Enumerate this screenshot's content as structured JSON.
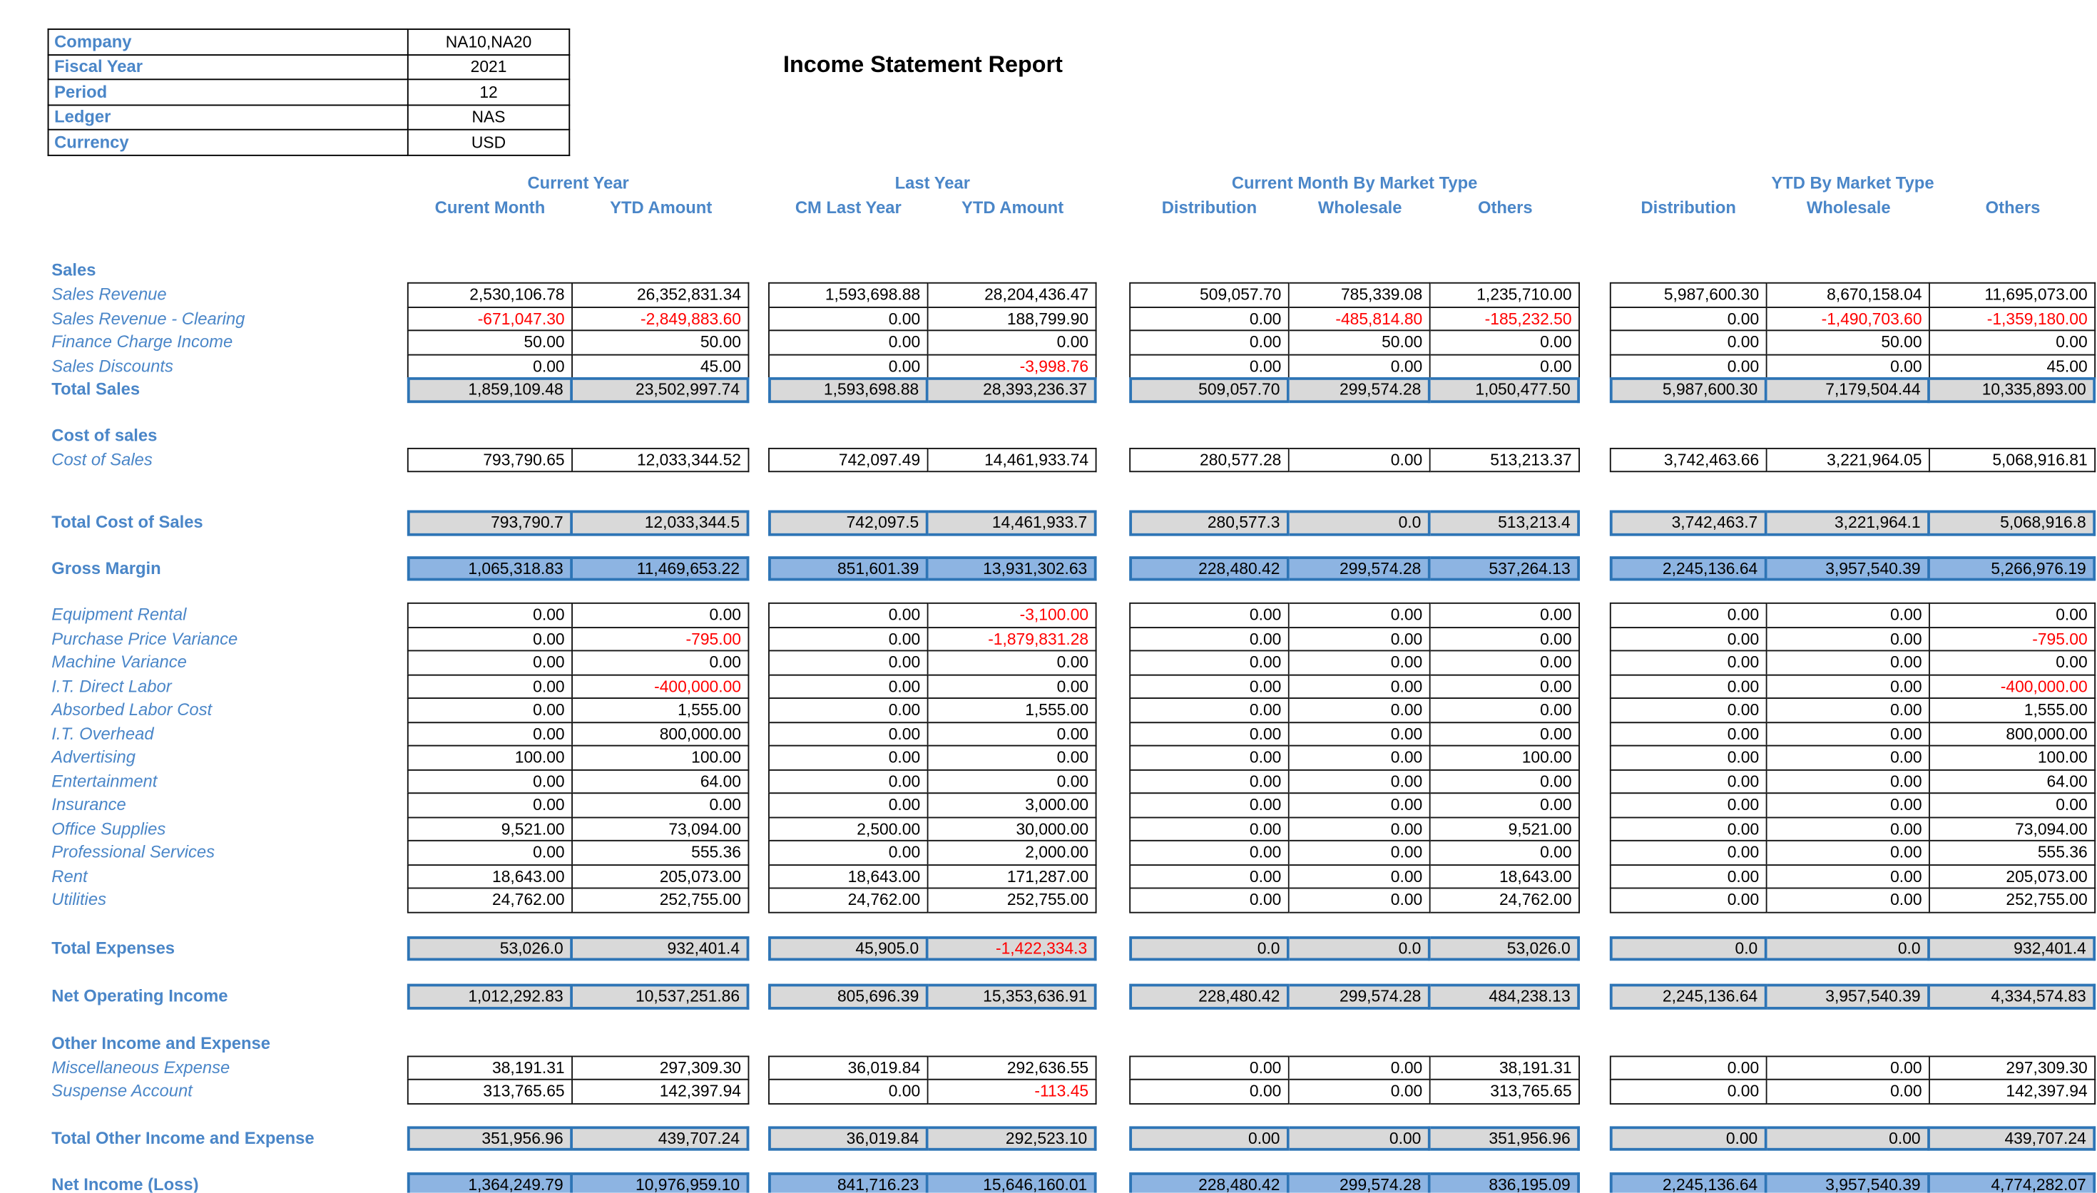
{
  "title": "Income Statement Report",
  "info": {
    "rows": [
      {
        "label": "Company",
        "value": "NA10,NA20"
      },
      {
        "label": "Fiscal Year",
        "value": "2021"
      },
      {
        "label": "Period",
        "value": "12"
      },
      {
        "label": "Ledger",
        "value": "NAS"
      },
      {
        "label": "Currency",
        "value": "USD"
      }
    ]
  },
  "colors": {
    "label_blue": "#4A86C8",
    "total_border_blue": "#2E75B6",
    "highlight_fill_blue": "#8DB4E2",
    "total_fill_gray": "#D9D9D9",
    "negative_red": "#FF0000"
  },
  "report": {
    "column_groups": [
      {
        "label": "Current Year",
        "cols": [
          "Curent Month",
          "YTD Amount"
        ]
      },
      {
        "label": "Last Year",
        "cols": [
          "CM Last Year",
          "YTD Amount"
        ]
      },
      {
        "label": "Current Month By Market Type",
        "cols": [
          "Distribution",
          "Wholesale",
          "Others"
        ]
      },
      {
        "label": "YTD By Market Type",
        "cols": [
          "Distribution",
          "Wholesale",
          "Others"
        ]
      }
    ],
    "rows": [
      {
        "type": "section",
        "label": "Sales"
      },
      {
        "type": "detail",
        "label": "Sales Revenue",
        "values": [
          "2,530,106.78",
          "26,352,831.34",
          "1,593,698.88",
          "28,204,436.47",
          "509,057.70",
          "785,339.08",
          "1,235,710.00",
          "5,987,600.30",
          "8,670,158.04",
          "11,695,073.00"
        ]
      },
      {
        "type": "detail",
        "label": "Sales Revenue - Clearing",
        "values": [
          "-671,047.30",
          "-2,849,883.60",
          "0.00",
          "188,799.90",
          "0.00",
          "-485,814.80",
          "-185,232.50",
          "0.00",
          "-1,490,703.60",
          "-1,359,180.00"
        ]
      },
      {
        "type": "detail",
        "label": "Finance Charge Income",
        "values": [
          "50.00",
          "50.00",
          "0.00",
          "0.00",
          "0.00",
          "50.00",
          "0.00",
          "0.00",
          "50.00",
          "0.00"
        ]
      },
      {
        "type": "detail",
        "label": "Sales Discounts",
        "values": [
          "0.00",
          "45.00",
          "0.00",
          "-3,998.76",
          "0.00",
          "0.00",
          "0.00",
          "0.00",
          "0.00",
          "45.00"
        ]
      },
      {
        "type": "total",
        "label": "Total Sales",
        "values": [
          "1,859,109.48",
          "23,502,997.74",
          "1,593,698.88",
          "28,393,236.37",
          "509,057.70",
          "299,574.28",
          "1,050,477.50",
          "5,987,600.30",
          "7,179,504.44",
          "10,335,893.00"
        ]
      },
      {
        "type": "section",
        "label": "Cost of sales"
      },
      {
        "type": "detail",
        "label": "Cost of Sales",
        "values": [
          "793,790.65",
          "12,033,344.52",
          "742,097.49",
          "14,461,933.74",
          "280,577.28",
          "0.00",
          "513,213.37",
          "3,742,463.66",
          "3,221,964.05",
          "5,068,916.81"
        ]
      },
      {
        "type": "total",
        "label": "Total Cost of Sales",
        "values": [
          "793,790.7",
          "12,033,344.5",
          "742,097.5",
          "14,461,933.7",
          "280,577.3",
          "0.0",
          "513,213.4",
          "3,742,463.7",
          "3,221,964.1",
          "5,068,916.8"
        ]
      },
      {
        "type": "blue",
        "label": "Gross Margin",
        "values": [
          "1,065,318.83",
          "11,469,653.22",
          "851,601.39",
          "13,931,302.63",
          "228,480.42",
          "299,574.28",
          "537,264.13",
          "2,245,136.64",
          "3,957,540.39",
          "5,266,976.19"
        ]
      },
      {
        "type": "detail",
        "label": "Equipment Rental",
        "values": [
          "0.00",
          "0.00",
          "0.00",
          "-3,100.00",
          "0.00",
          "0.00",
          "0.00",
          "0.00",
          "0.00",
          "0.00"
        ]
      },
      {
        "type": "detail",
        "label": "Purchase Price Variance",
        "values": [
          "0.00",
          "-795.00",
          "0.00",
          "-1,879,831.28",
          "0.00",
          "0.00",
          "0.00",
          "0.00",
          "0.00",
          "-795.00"
        ]
      },
      {
        "type": "detail",
        "label": "Machine Variance",
        "values": [
          "0.00",
          "0.00",
          "0.00",
          "0.00",
          "0.00",
          "0.00",
          "0.00",
          "0.00",
          "0.00",
          "0.00"
        ]
      },
      {
        "type": "detail",
        "label": "I.T. Direct Labor",
        "values": [
          "0.00",
          "-400,000.00",
          "0.00",
          "0.00",
          "0.00",
          "0.00",
          "0.00",
          "0.00",
          "0.00",
          "-400,000.00"
        ]
      },
      {
        "type": "detail",
        "label": "Absorbed Labor Cost",
        "values": [
          "0.00",
          "1,555.00",
          "0.00",
          "1,555.00",
          "0.00",
          "0.00",
          "0.00",
          "0.00",
          "0.00",
          "1,555.00"
        ]
      },
      {
        "type": "detail",
        "label": "I.T. Overhead",
        "values": [
          "0.00",
          "800,000.00",
          "0.00",
          "0.00",
          "0.00",
          "0.00",
          "0.00",
          "0.00",
          "0.00",
          "800,000.00"
        ]
      },
      {
        "type": "detail",
        "label": "Advertising",
        "values": [
          "100.00",
          "100.00",
          "0.00",
          "0.00",
          "0.00",
          "0.00",
          "100.00",
          "0.00",
          "0.00",
          "100.00"
        ]
      },
      {
        "type": "detail",
        "label": "Entertainment",
        "values": [
          "0.00",
          "64.00",
          "0.00",
          "0.00",
          "0.00",
          "0.00",
          "0.00",
          "0.00",
          "0.00",
          "64.00"
        ]
      },
      {
        "type": "detail",
        "label": "Insurance",
        "values": [
          "0.00",
          "0.00",
          "0.00",
          "3,000.00",
          "0.00",
          "0.00",
          "0.00",
          "0.00",
          "0.00",
          "0.00"
        ]
      },
      {
        "type": "detail",
        "label": "Office Supplies",
        "values": [
          "9,521.00",
          "73,094.00",
          "2,500.00",
          "30,000.00",
          "0.00",
          "0.00",
          "9,521.00",
          "0.00",
          "0.00",
          "73,094.00"
        ]
      },
      {
        "type": "detail",
        "label": "Professional Services",
        "values": [
          "0.00",
          "555.36",
          "0.00",
          "2,000.00",
          "0.00",
          "0.00",
          "0.00",
          "0.00",
          "0.00",
          "555.36"
        ]
      },
      {
        "type": "detail",
        "label": "Rent",
        "values": [
          "18,643.00",
          "205,073.00",
          "18,643.00",
          "171,287.00",
          "0.00",
          "0.00",
          "18,643.00",
          "0.00",
          "0.00",
          "205,073.00"
        ]
      },
      {
        "type": "detail",
        "label": "Utilities",
        "values": [
          "24,762.00",
          "252,755.00",
          "24,762.00",
          "252,755.00",
          "0.00",
          "0.00",
          "24,762.00",
          "0.00",
          "0.00",
          "252,755.00"
        ]
      },
      {
        "type": "total",
        "label": "Total Expenses",
        "values": [
          "53,026.0",
          "932,401.4",
          "45,905.0",
          "-1,422,334.3",
          "0.0",
          "0.0",
          "53,026.0",
          "0.0",
          "0.0",
          "932,401.4"
        ]
      },
      {
        "type": "total",
        "label": "Net Operating Income",
        "values": [
          "1,012,292.83",
          "10,537,251.86",
          "805,696.39",
          "15,353,636.91",
          "228,480.42",
          "299,574.28",
          "484,238.13",
          "2,245,136.64",
          "3,957,540.39",
          "4,334,574.83"
        ]
      },
      {
        "type": "section",
        "label": "Other Income and Expense"
      },
      {
        "type": "detail",
        "label": "Miscellaneous Expense",
        "values": [
          "38,191.31",
          "297,309.30",
          "36,019.84",
          "292,636.55",
          "0.00",
          "0.00",
          "38,191.31",
          "0.00",
          "0.00",
          "297,309.30"
        ]
      },
      {
        "type": "detail",
        "label": "Suspense Account",
        "values": [
          "313,765.65",
          "142,397.94",
          "0.00",
          "-113.45",
          "0.00",
          "0.00",
          "313,765.65",
          "0.00",
          "0.00",
          "142,397.94"
        ]
      },
      {
        "type": "total",
        "label": "Total Other Income and Expense",
        "values": [
          "351,956.96",
          "439,707.24",
          "36,019.84",
          "292,523.10",
          "0.00",
          "0.00",
          "351,956.96",
          "0.00",
          "0.00",
          "439,707.24"
        ]
      },
      {
        "type": "blue",
        "label": "Net Income (Loss)",
        "values": [
          "1,364,249.79",
          "10,976,959.10",
          "841,716.23",
          "15,646,160.01",
          "228,480.42",
          "299,574.28",
          "836,195.09",
          "2,245,136.64",
          "3,957,540.39",
          "4,774,282.07"
        ]
      }
    ]
  }
}
